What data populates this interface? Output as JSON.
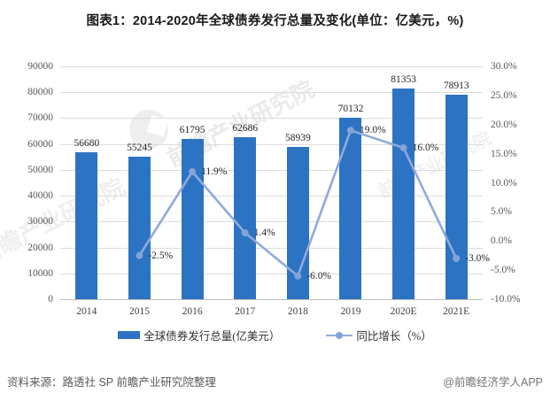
{
  "title": "图表1：2014-2020年全球债券发行总量及变化(单位：亿美元，%)",
  "chart_data": {
    "type": "bar",
    "combo": "bar+line, dual axis",
    "categories": [
      "2014",
      "2015",
      "2016",
      "2017",
      "2018",
      "2019",
      "2020E",
      "2021E"
    ],
    "series": [
      {
        "name": "全球债券发行总量(亿美元）",
        "type": "bar",
        "color": "#2D73C3",
        "axis": "left",
        "values": [
          56680,
          55245,
          61795,
          62686,
          58939,
          70132,
          81353,
          78913
        ],
        "labels": [
          "56680",
          "55245",
          "61795",
          "62686",
          "58939",
          "70132",
          "81353",
          "78913"
        ]
      },
      {
        "name": "同比增长（%）",
        "type": "line",
        "color": "#8FAADC",
        "marker_color": "#84A3D8",
        "axis": "right",
        "values": [
          null,
          -2.5,
          11.9,
          1.4,
          -6.0,
          19.0,
          16.0,
          -3.0
        ],
        "labels": [
          "",
          "-2.5%",
          "11.9%",
          "1.4%",
          "-6.0%",
          "19.0%",
          "16.0%",
          "-3.0%"
        ]
      }
    ],
    "left_axis": {
      "min": 0,
      "max": 90000,
      "step": 10000,
      "ticks_top_to_bottom": [
        "90000",
        "80000",
        "70000",
        "60000",
        "50000",
        "40000",
        "30000",
        "20000",
        "10000",
        "0"
      ]
    },
    "right_axis": {
      "min": -10,
      "max": 30,
      "step": 5,
      "ticks_top_to_bottom": [
        "30.0%",
        "25.0%",
        "20.0%",
        "15.0%",
        "10.0%",
        "5.0%",
        "0.0%",
        "-5.0%",
        "-10.0%"
      ]
    },
    "grid": true,
    "legend_position": "bottom"
  },
  "footer": {
    "source": "资料来源：路透社 SP 前瞻产业研究院整理",
    "brand": "@前瞻经济学人APP"
  },
  "watermark": {
    "text": "前瞻产业研究院"
  }
}
